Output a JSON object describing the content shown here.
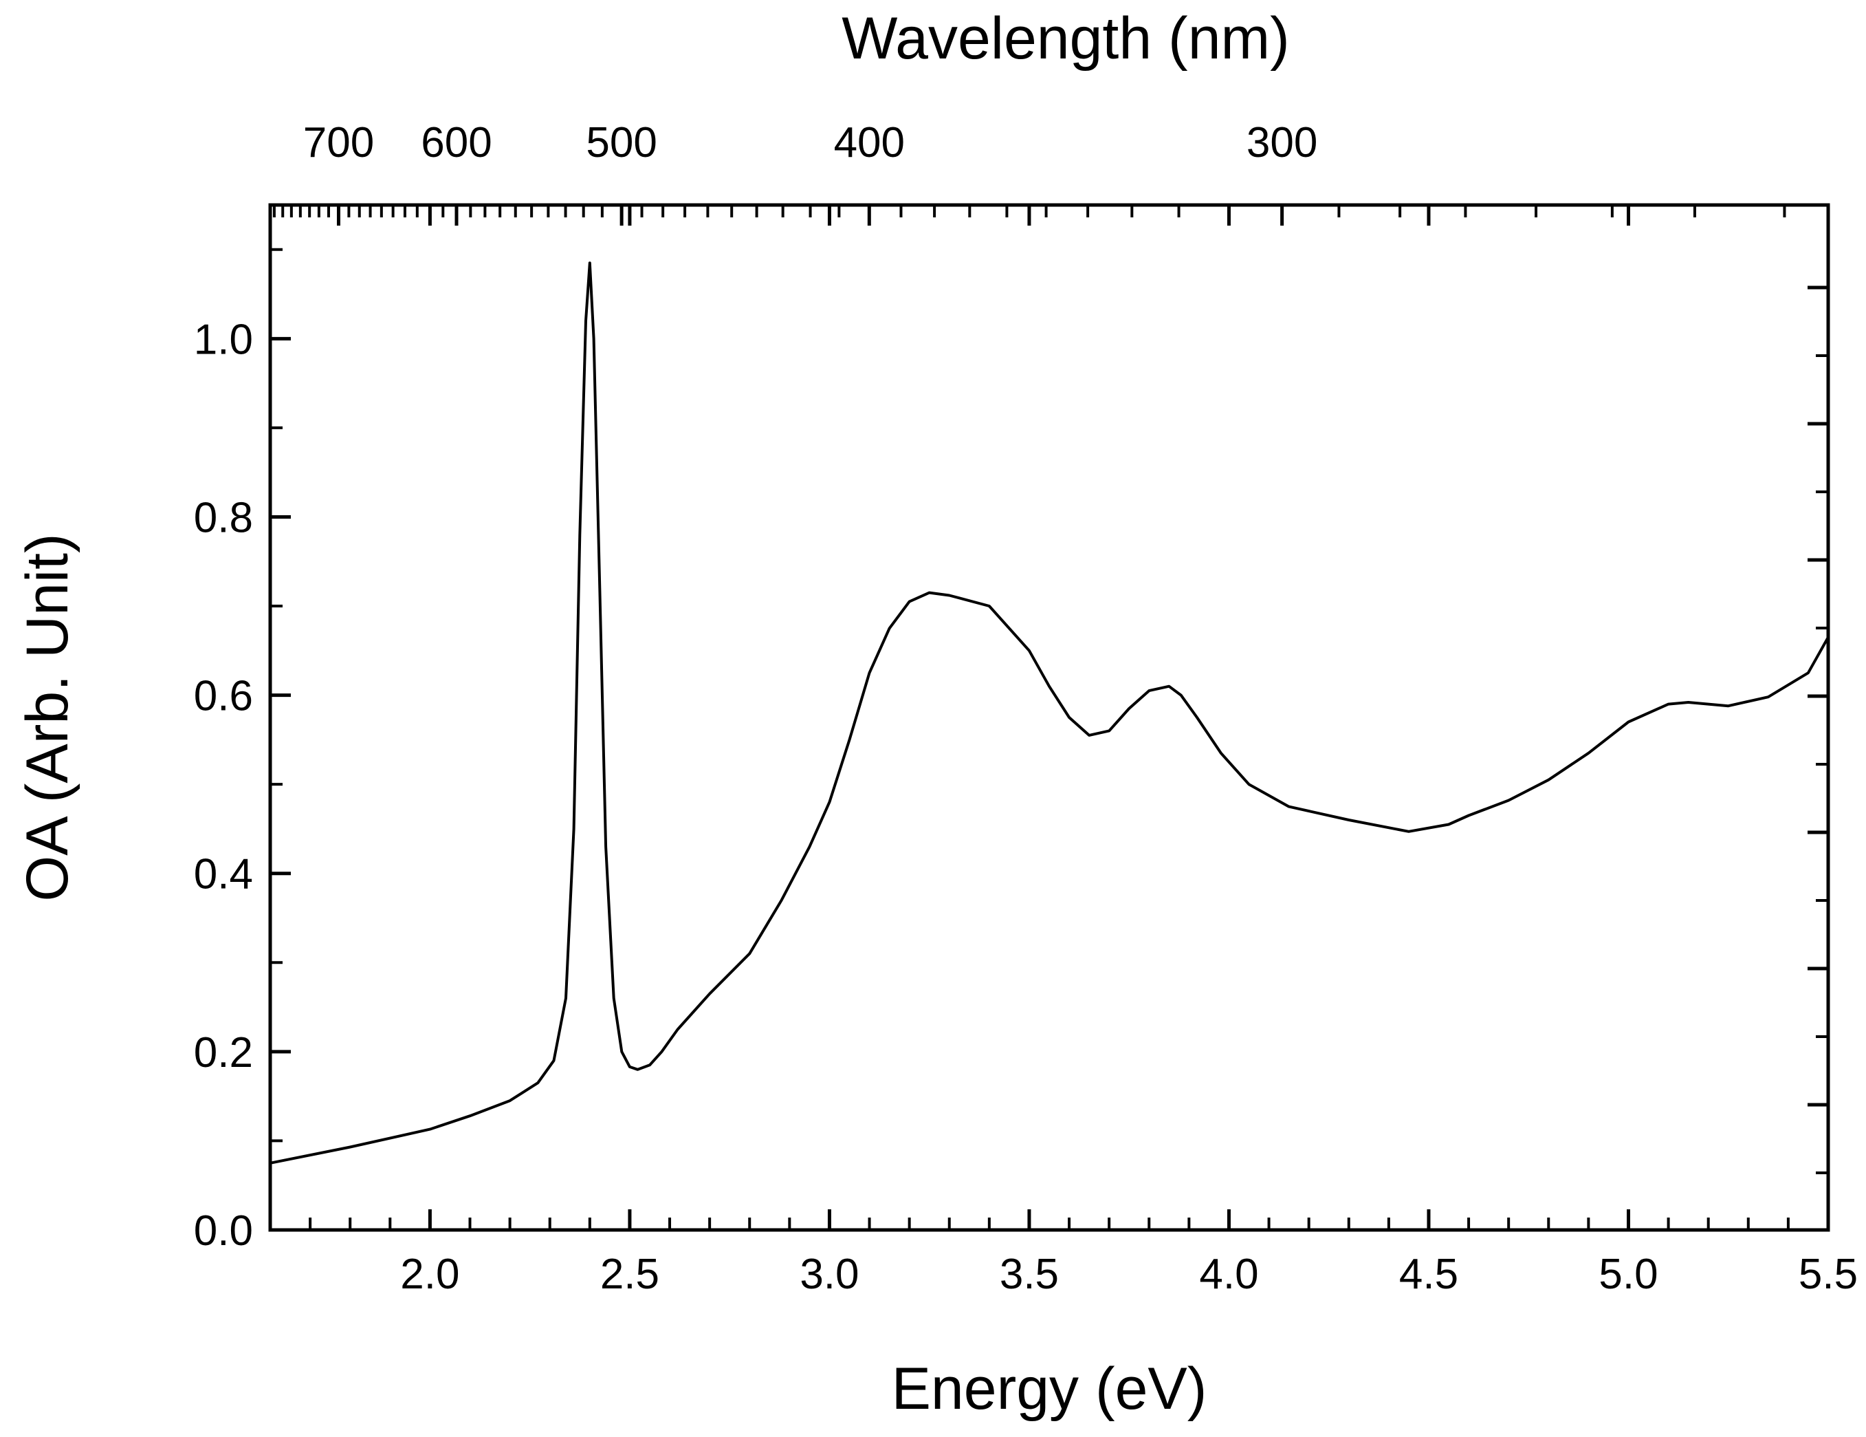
{
  "chart_data": {
    "type": "line",
    "title": "",
    "xlabel": "Energy (eV)",
    "ylabel": "OA (Arb. Unit)",
    "top_axis_label": "Wavelength (nm)",
    "xlim": [
      1.6,
      5.5
    ],
    "ylim": [
      0.0,
      1.15
    ],
    "x_ticks": [
      2.0,
      2.5,
      3.0,
      3.5,
      4.0,
      4.5,
      5.0,
      5.5
    ],
    "x_tick_labels": [
      "2.0",
      "2.5",
      "3.0",
      "3.5",
      "4.0",
      "4.5",
      "5.0",
      "5.5"
    ],
    "y_ticks": [
      0.0,
      0.2,
      0.4,
      0.6,
      0.8,
      1.0
    ],
    "y_tick_labels": [
      "0.0",
      "0.2",
      "0.4",
      "0.6",
      "0.8",
      "1.0"
    ],
    "top_ticks_nm": [
      700,
      600,
      500,
      400,
      300
    ],
    "top_tick_labels": [
      "700",
      "600",
      "500",
      "400",
      "300"
    ],
    "grid": false,
    "legend": "none",
    "series": [
      {
        "name": "OA",
        "color": "#000000",
        "x": [
          1.6,
          1.8,
          2.0,
          2.1,
          2.2,
          2.27,
          2.31,
          2.34,
          2.36,
          2.375,
          2.39,
          2.4,
          2.41,
          2.425,
          2.44,
          2.46,
          2.48,
          2.5,
          2.52,
          2.55,
          2.58,
          2.62,
          2.7,
          2.8,
          2.88,
          2.95,
          3.0,
          3.05,
          3.1,
          3.15,
          3.2,
          3.25,
          3.3,
          3.4,
          3.5,
          3.55,
          3.6,
          3.65,
          3.7,
          3.75,
          3.8,
          3.85,
          3.88,
          3.92,
          3.98,
          4.05,
          4.15,
          4.3,
          4.45,
          4.55,
          4.6,
          4.7,
          4.8,
          4.9,
          5.0,
          5.1,
          5.15,
          5.25,
          5.35,
          5.45,
          5.5
        ],
        "y": [
          0.075,
          0.093,
          0.113,
          0.128,
          0.145,
          0.165,
          0.19,
          0.26,
          0.45,
          0.78,
          1.02,
          1.085,
          1.0,
          0.72,
          0.43,
          0.26,
          0.2,
          0.183,
          0.18,
          0.185,
          0.2,
          0.225,
          0.265,
          0.31,
          0.37,
          0.43,
          0.48,
          0.55,
          0.625,
          0.675,
          0.705,
          0.715,
          0.712,
          0.7,
          0.65,
          0.61,
          0.575,
          0.555,
          0.56,
          0.585,
          0.605,
          0.61,
          0.6,
          0.575,
          0.535,
          0.5,
          0.475,
          0.46,
          0.447,
          0.455,
          0.465,
          0.482,
          0.505,
          0.535,
          0.57,
          0.59,
          0.592,
          0.588,
          0.598,
          0.625,
          0.665
        ]
      }
    ]
  }
}
